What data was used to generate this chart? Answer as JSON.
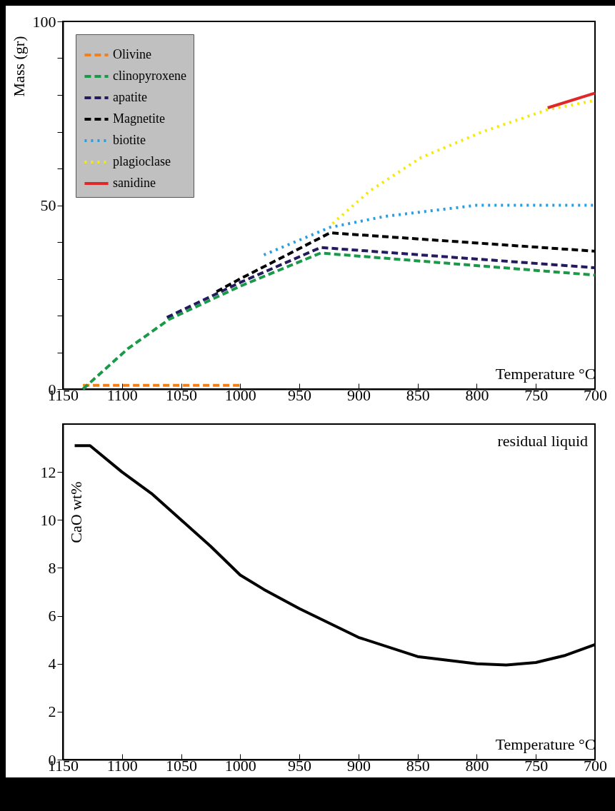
{
  "chart_data": [
    {
      "type": "line",
      "xlabel": "Temperature °C",
      "ylabel": "Mass (gr)",
      "xlim": [
        1150,
        700
      ],
      "xticks": [
        1150,
        1100,
        1050,
        1000,
        950,
        900,
        850,
        800,
        750,
        700
      ],
      "ylim": [
        0,
        100
      ],
      "yticks": [
        0,
        {
          "value": 10,
          "label": null
        },
        {
          "value": 20,
          "label": null
        },
        {
          "value": 30,
          "label": null
        },
        {
          "value": 40,
          "label": null
        },
        50,
        {
          "value": 60,
          "label": null
        },
        {
          "value": 70,
          "label": null
        },
        {
          "value": 80,
          "label": null
        },
        {
          "value": 90,
          "label": null
        },
        100
      ],
      "legend": "top left",
      "grid": false,
      "series": [
        {
          "name": "Olivine",
          "color": "#f07f1e",
          "line_style": "dashed",
          "x": [
            1133,
            1000
          ],
          "values": [
            1,
            1
          ]
        },
        {
          "name": "clinopyroxene",
          "color": "#1a9a48",
          "line_style": "dashed",
          "x": [
            1133,
            1095,
            1060,
            1000,
            932,
            700
          ],
          "values": [
            0,
            11,
            19,
            28,
            37,
            31
          ]
        },
        {
          "name": "apatite",
          "color": "#241a5e",
          "line_style": "dashed",
          "x": [
            1062,
            1000,
            932,
            700
          ],
          "values": [
            19.5,
            29,
            38.5,
            33
          ]
        },
        {
          "name": "Magnetite",
          "color": "#000000",
          "line_style": "dashed",
          "x": [
            1020,
            1000,
            924,
            700
          ],
          "values": [
            26.5,
            30,
            42.5,
            37.5
          ]
        },
        {
          "name": "biotite",
          "color": "#2a9ee0",
          "line_style": "dotted",
          "x": [
            980,
            924,
            877,
            800,
            700
          ],
          "values": [
            36.5,
            44,
            47,
            50,
            50
          ]
        },
        {
          "name": "plagioclase",
          "color": "#f5ea10",
          "line_style": "dotted",
          "x": [
            922,
            890,
            847,
            795,
            740,
            700
          ],
          "values": [
            45,
            54,
            63,
            70,
            76,
            78.5
          ]
        },
        {
          "name": "sanidine",
          "color": "#e02828",
          "line_style": "solid",
          "x": [
            740,
            700
          ],
          "values": [
            76.5,
            80.5
          ]
        }
      ]
    },
    {
      "type": "line",
      "xlabel": "Temperature °C",
      "ylabel": "CaO wt%",
      "annotations": [
        "residual liquid"
      ],
      "xlim": [
        1150,
        700
      ],
      "xticks": [
        1150,
        1100,
        1050,
        1000,
        950,
        900,
        850,
        800,
        750,
        700
      ],
      "ylim": [
        0,
        14
      ],
      "yticks": [
        0,
        2,
        4,
        6,
        8,
        10,
        12
      ],
      "legend": false,
      "grid": false,
      "series": [
        {
          "color": "#000000",
          "line_style": "solid",
          "x": [
            1140,
            1127,
            1100,
            1075,
            1050,
            1025,
            1000,
            980,
            950,
            900,
            850,
            800,
            775,
            750,
            725,
            700
          ],
          "values": [
            13.1,
            13.1,
            12,
            11.1,
            10,
            8.9,
            7.7,
            7.1,
            6.3,
            5.1,
            4.3,
            4,
            3.95,
            4.05,
            4.35,
            4.8
          ]
        }
      ]
    }
  ]
}
